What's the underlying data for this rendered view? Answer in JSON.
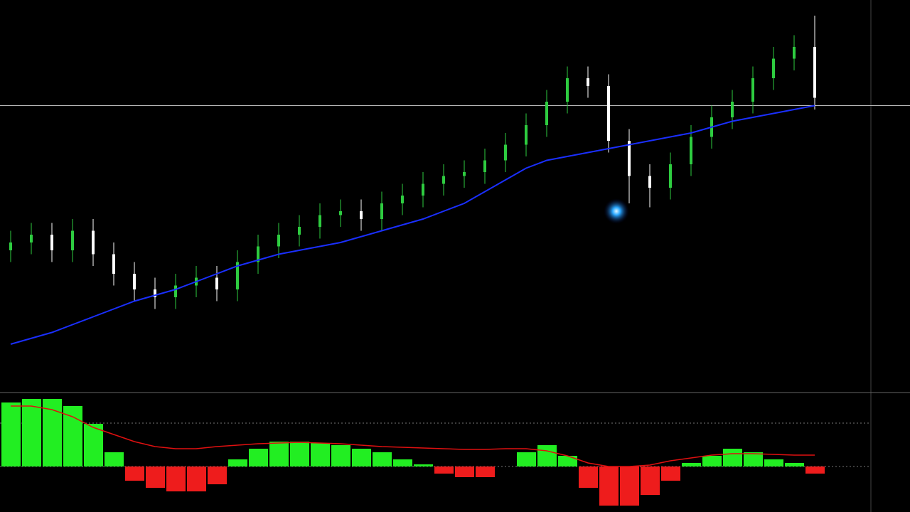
{
  "chart_data": [
    {
      "type": "candlestick",
      "ylim": [
        0,
        100
      ],
      "up_color": "#2ecc40",
      "down_color": "#ffffff",
      "ma_color": "#1a2fff",
      "price_line": 73,
      "open": [
        36,
        38,
        40,
        36,
        41,
        35,
        30,
        26,
        24,
        27,
        29,
        26,
        33,
        37,
        40,
        42,
        45,
        46,
        44,
        48,
        50,
        53,
        55,
        56,
        59,
        63,
        68,
        74,
        80,
        78,
        64,
        55,
        52,
        58,
        65,
        70,
        74,
        80,
        85,
        88
      ],
      "close": [
        38,
        40,
        36,
        41,
        35,
        30,
        26,
        24,
        27,
        29,
        26,
        33,
        37,
        40,
        42,
        45,
        46,
        44,
        48,
        50,
        53,
        55,
        56,
        59,
        63,
        68,
        74,
        80,
        78,
        64,
        55,
        52,
        58,
        65,
        70,
        74,
        80,
        85,
        88,
        75
      ],
      "high": [
        41,
        43,
        43,
        44,
        44,
        38,
        33,
        29,
        30,
        32,
        32,
        36,
        40,
        43,
        45,
        48,
        49,
        49,
        51,
        53,
        56,
        58,
        59,
        62,
        66,
        71,
        77,
        83,
        83,
        81,
        67,
        58,
        61,
        68,
        73,
        77,
        83,
        88,
        91,
        96
      ],
      "low": [
        33,
        35,
        33,
        33,
        32,
        27,
        23,
        21,
        21,
        24,
        23,
        23,
        30,
        34,
        37,
        39,
        42,
        41,
        41,
        45,
        47,
        50,
        52,
        53,
        56,
        60,
        65,
        71,
        75,
        61,
        48,
        47,
        49,
        55,
        62,
        67,
        71,
        77,
        82,
        72
      ],
      "ma": [
        12,
        13.5,
        15,
        17,
        19,
        21,
        23,
        24.5,
        26,
        28,
        30,
        32,
        33.5,
        35,
        36,
        37,
        38,
        39.5,
        41,
        42.5,
        44,
        46,
        48,
        51,
        54,
        57,
        59,
        60,
        61,
        62,
        63,
        64,
        65,
        66,
        67.5,
        69,
        70,
        71,
        72,
        73
      ]
    },
    {
      "type": "histogram",
      "ylim": [
        -60,
        100
      ],
      "pos_color": "#22ee22",
      "neg_color": "#ee1c1c",
      "signal_color": "#e01010",
      "levels": [
        61,
        0
      ],
      "values": [
        90,
        95,
        95,
        85,
        60,
        20,
        -20,
        -30,
        -35,
        -35,
        -25,
        10,
        25,
        35,
        35,
        33,
        30,
        25,
        20,
        10,
        3,
        -10,
        -15,
        -15,
        0,
        20,
        30,
        15,
        -30,
        -55,
        -55,
        -40,
        -20,
        5,
        15,
        25,
        20,
        10,
        5,
        -10
      ],
      "signal": [
        85,
        85,
        80,
        70,
        55,
        45,
        35,
        28,
        25,
        25,
        28,
        30,
        32,
        33,
        34,
        33,
        32,
        30,
        28,
        27,
        26,
        25,
        24,
        24,
        25,
        25,
        22,
        15,
        5,
        0,
        0,
        2,
        8,
        12,
        16,
        18,
        18,
        17,
        16,
        16
      ]
    }
  ]
}
